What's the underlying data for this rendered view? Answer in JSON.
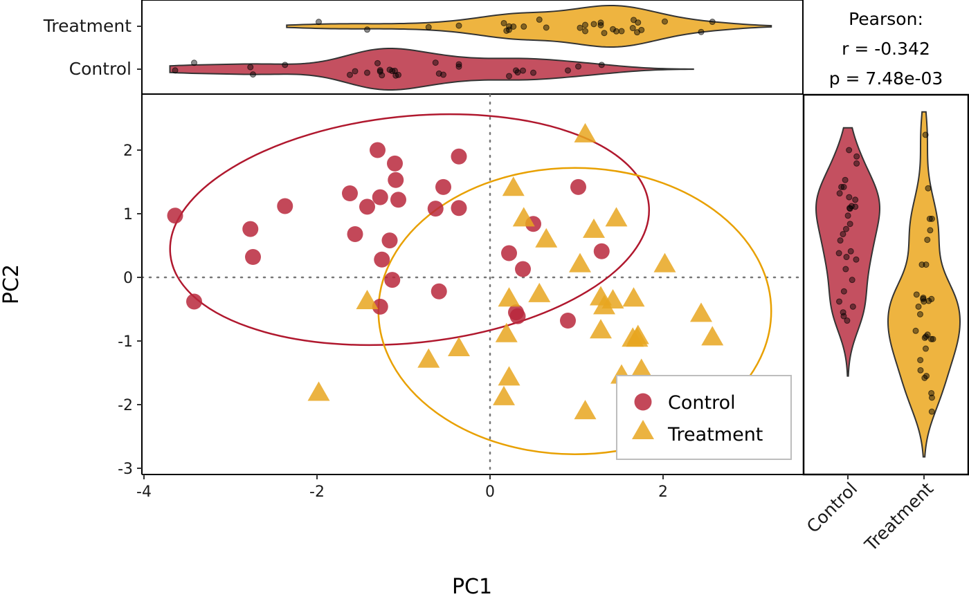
{
  "chart_data": {
    "type": "scatter",
    "title": "",
    "xlabel": "PC1",
    "ylabel": "PC2",
    "xlim": [
      -4.0,
      3.55
    ],
    "ylim": [
      -3.05,
      2.88
    ],
    "xticks": [
      -4,
      -2,
      0,
      2
    ],
    "yticks": [
      -3,
      -2,
      -1,
      0,
      1,
      2
    ],
    "xtick_labels": [
      "-4",
      "-2",
      "0",
      "2"
    ],
    "ytick_labels": [
      "-3",
      "-2",
      "-1",
      "0",
      "1",
      "2"
    ],
    "reference_lines": {
      "x": 0,
      "y": 0,
      "style": "dotted"
    },
    "legend": {
      "position": "bottom-right",
      "entries": [
        {
          "label": "Control",
          "marker": "circle",
          "color": "#b8283c"
        },
        {
          "label": "Treatment",
          "marker": "triangle",
          "color": "#e8a620"
        }
      ]
    },
    "series": [
      {
        "name": "Control",
        "marker": "circle",
        "color": "#b8283c",
        "ellipse_color": "#b0182e",
        "ellipse": {
          "cx": -0.93,
          "cy": 0.75,
          "rx": 2.78,
          "ry": 1.78,
          "angle_deg": -6
        },
        "x": [
          -3.64,
          -3.42,
          -2.77,
          -2.74,
          -2.37,
          -1.62,
          -1.56,
          -1.42,
          -1.3,
          -1.27,
          -1.25,
          -1.27,
          -1.16,
          -1.13,
          -1.1,
          -1.09,
          -1.06,
          -0.63,
          -0.59,
          -0.54,
          -0.36,
          -0.36,
          0.22,
          0.3,
          0.32,
          0.38,
          0.5,
          0.9,
          1.02,
          1.29
        ],
        "y": [
          0.97,
          -0.38,
          0.76,
          0.32,
          1.12,
          1.32,
          0.68,
          1.11,
          2.0,
          1.26,
          0.28,
          -0.46,
          0.58,
          -0.04,
          1.79,
          1.53,
          1.22,
          1.08,
          -0.22,
          1.42,
          1.9,
          1.09,
          0.38,
          -0.55,
          -0.61,
          0.13,
          0.84,
          -0.68,
          1.42,
          0.41
        ]
      },
      {
        "name": "Treatment",
        "marker": "triangle",
        "color": "#e8a620",
        "ellipse_color": "#e8a000",
        "ellipse": {
          "cx": 0.98,
          "cy": -0.53,
          "rx": 2.27,
          "ry": 2.25,
          "angle_deg": 0
        },
        "x": [
          -1.98,
          -1.42,
          -0.71,
          -0.36,
          0.16,
          0.19,
          0.22,
          0.22,
          0.27,
          0.39,
          0.57,
          0.65,
          1.04,
          1.1,
          1.1,
          1.2,
          1.28,
          1.28,
          1.32,
          1.42,
          1.46,
          1.52,
          1.66,
          1.65,
          1.7,
          1.71,
          1.75,
          2.02,
          2.44,
          2.57
        ],
        "y": [
          -1.82,
          -0.38,
          -1.3,
          -1.12,
          -1.89,
          -0.9,
          -1.58,
          -0.34,
          1.4,
          0.92,
          -0.27,
          0.59,
          0.2,
          2.24,
          -2.11,
          0.74,
          -0.32,
          -0.84,
          -0.46,
          -0.37,
          0.92,
          -1.55,
          -0.34,
          -0.97,
          -0.97,
          -0.93,
          -1.46,
          0.2,
          -0.58,
          -0.95
        ]
      }
    ],
    "marginal_top": {
      "type": "violin",
      "orientation": "horizontal",
      "variable": "PC1",
      "categories": [
        "Treatment",
        "Control"
      ],
      "colors": {
        "Control": "#c45060",
        "Treatment": "#eeb440"
      },
      "ranges": {
        "Treatment": [
          -2.35,
          3.25
        ],
        "Control": [
          -3.7,
          2.35
        ]
      }
    },
    "marginal_right": {
      "type": "violin",
      "orientation": "vertical",
      "variable": "PC2",
      "categories": [
        "Control",
        "Treatment"
      ],
      "tick_labels": [
        "Control",
        "Treatment"
      ],
      "colors": {
        "Control": "#c45060",
        "Treatment": "#eeb440"
      },
      "ranges": {
        "Control": [
          -1.55,
          2.35
        ],
        "Treatment": [
          -2.82,
          2.6
        ]
      }
    },
    "annotation": {
      "lines": [
        "Pearson:",
        "r = -0.342",
        "p = 7.48e-03"
      ],
      "method": "Pearson",
      "r": -0.342,
      "p": 0.00748
    }
  }
}
